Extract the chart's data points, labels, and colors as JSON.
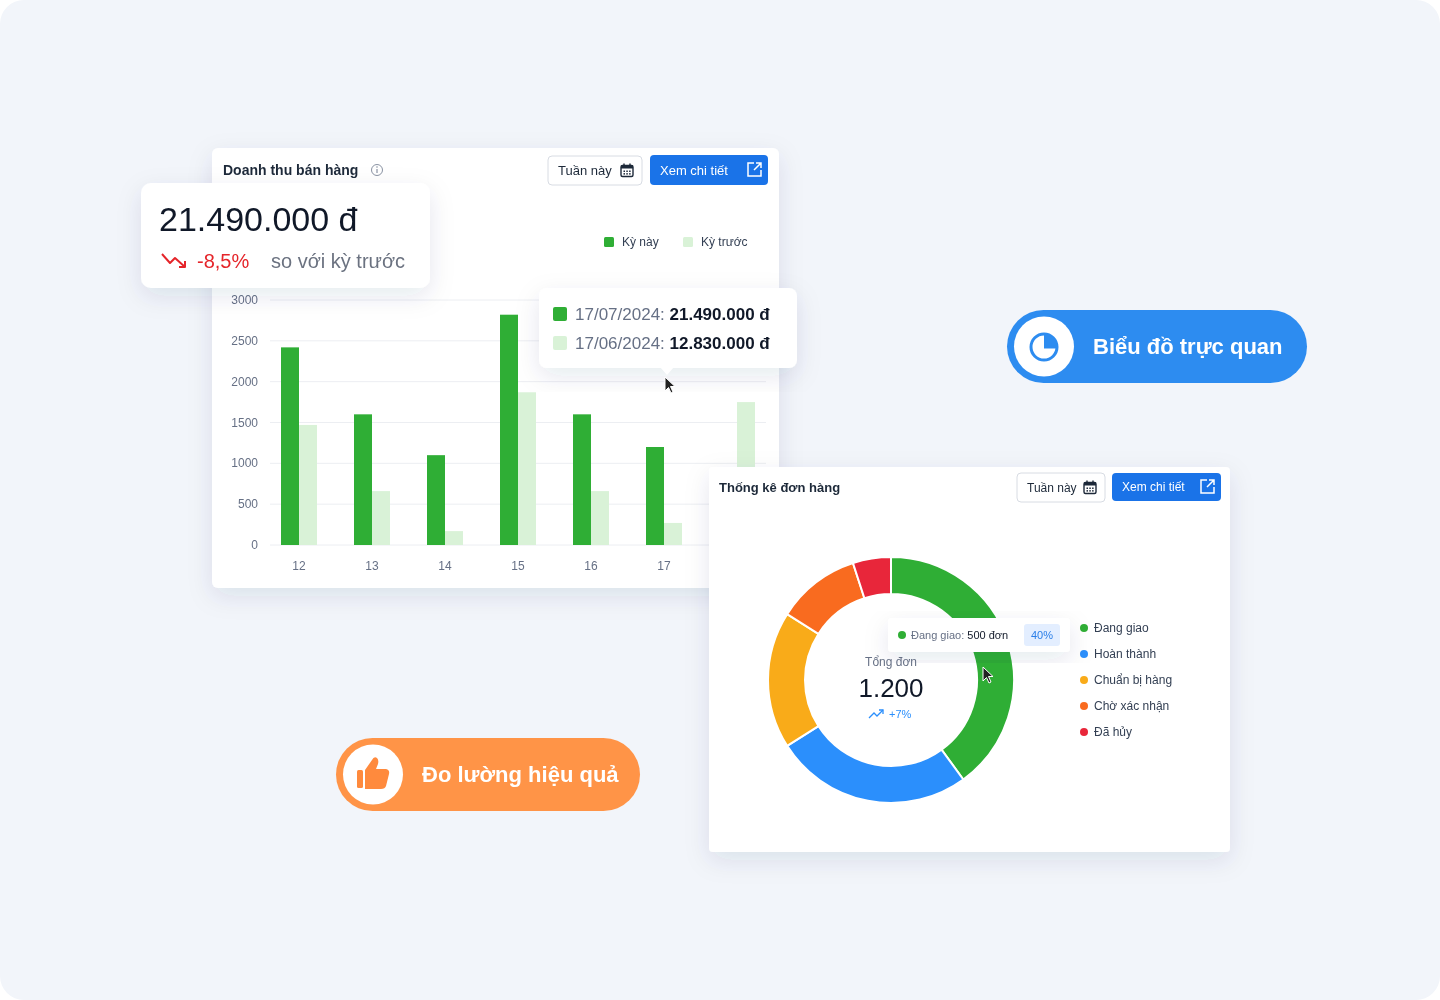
{
  "chart_data": [
    {
      "type": "bar",
      "title": "Doanh thu bán hàng",
      "categories": [
        "12",
        "13",
        "14",
        "15",
        "16",
        "17",
        null
      ],
      "series": [
        {
          "name": "Kỳ này",
          "color": "#2fae35",
          "values": [
            2420,
            1600,
            1100,
            2820,
            1600,
            1200,
            null
          ]
        },
        {
          "name": "Kỳ trước",
          "color": "#d9f2d7",
          "values": [
            1470,
            660,
            170,
            1870,
            660,
            270,
            1750
          ]
        }
      ],
      "ylim": [
        0,
        3000
      ],
      "yticks": [
        0,
        500,
        1000,
        1500,
        2000,
        2500,
        3000
      ],
      "grid": "y",
      "legend": "top right",
      "annotations": [
        "21.490.000 đ",
        "-8,5%",
        "so với kỳ trước",
        "17/07/2024: 21.490.000 đ",
        "17/06/2024: 12.830.000 đ",
        "Tuần này",
        "Xem chi tiết",
        "Biểu đồ trực quan"
      ]
    },
    {
      "type": "donut",
      "title": "Thống kê đơn hàng",
      "categories": [
        "Đang giao",
        "Hoàn thành",
        "Chuẩn bị hàng",
        "Chờ xác nhận",
        "Đã hủy"
      ],
      "values": [
        40,
        26,
        18,
        11,
        5
      ],
      "colors": [
        "#2fae35",
        "#2b8ffc",
        "#f9ab19",
        "#f96b1f",
        "#e8263a"
      ],
      "value_labels": [
        "40%",
        null,
        null,
        null,
        null
      ],
      "legend": "right",
      "annotations": [
        "Tuần này",
        "Xem chi tiết",
        "Đang giao: 500 đơn",
        "Tổng đơn",
        "1.200",
        "+7%",
        "Đo lường hiệu quả"
      ]
    }
  ]
}
